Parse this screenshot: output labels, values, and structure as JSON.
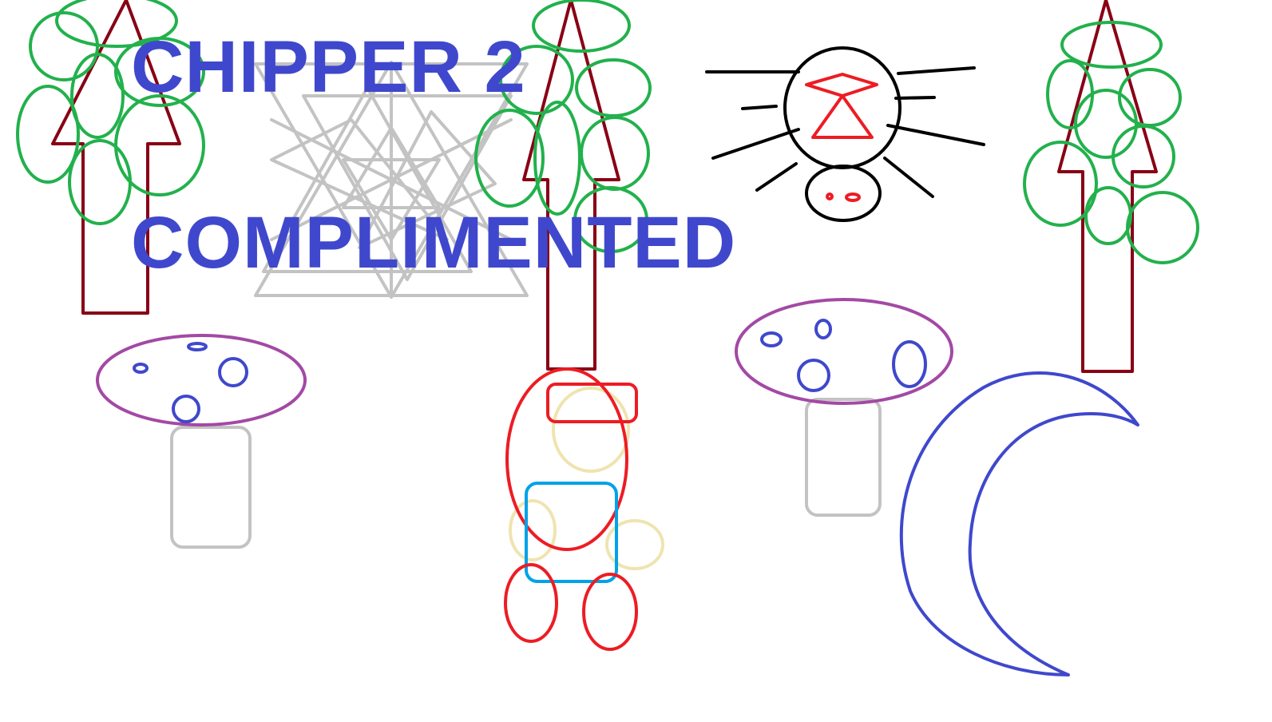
{
  "title": {
    "line1": "CHIPPER 2",
    "line2": "COMPLIMENTED"
  },
  "colors": {
    "title": "#3f48cc",
    "tree_trunk": "#880015",
    "foliage": "#22b14c",
    "mushroom_cap": "#a349a4",
    "mushroom_spots": "#3f48cc",
    "mushroom_stem": "#c3c3c3",
    "spider_body": "#000000",
    "spider_mark": "#ed1c24",
    "character_red": "#ed1c24",
    "character_blue": "#00a2e8",
    "character_skin": "#efe4b0",
    "moon": "#3f48cc",
    "snowflake": "#c3c3c3"
  },
  "sprites": [
    "tree",
    "tree",
    "tree",
    "snowflake",
    "spider",
    "mushroom",
    "mushroom",
    "chipper-character",
    "crescent-moon"
  ]
}
